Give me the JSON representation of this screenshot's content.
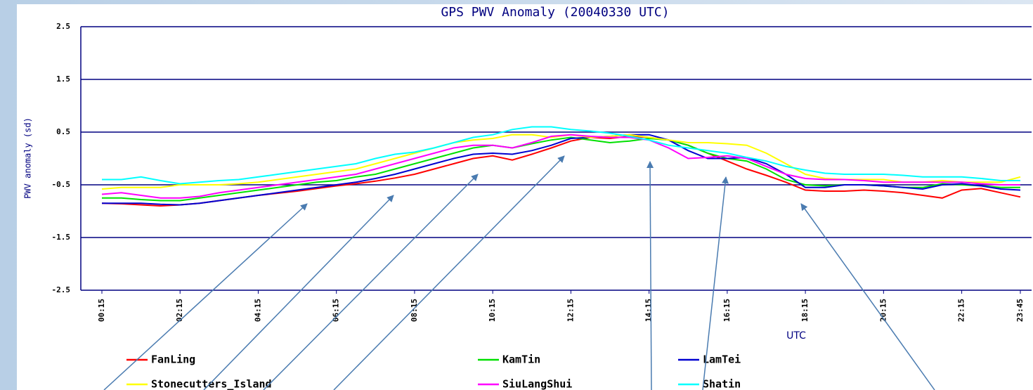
{
  "chart_data": {
    "type": "line",
    "title": "GPS PWV Anomaly (20040330 UTC)",
    "ylabel": "PWV anomaly (sd)",
    "xlabel": "UTC",
    "categories": [
      "00:15",
      null,
      null,
      null,
      "02:15",
      null,
      null,
      null,
      "04:15",
      null,
      null,
      null,
      "06:15",
      null,
      null,
      null,
      "08:15",
      null,
      null,
      null,
      "10:15",
      null,
      null,
      null,
      "12:15",
      null,
      null,
      null,
      "14:15",
      null,
      null,
      null,
      "16:15",
      null,
      null,
      null,
      "18:15",
      null,
      null,
      null,
      "20:15",
      null,
      null,
      null,
      "22:15",
      null,
      null,
      "23:45"
    ],
    "ylim": [
      -2.5,
      2.5
    ],
    "yticks": [
      -2.5,
      -1.5,
      -0.5,
      0.5,
      1.5,
      2.5
    ],
    "grid": true,
    "series": [
      {
        "name": "FanLing",
        "color": "#ff0000",
        "values": [
          -0.85,
          -0.86,
          -0.88,
          -0.9,
          -0.88,
          -0.85,
          -0.8,
          -0.75,
          -0.7,
          -0.66,
          -0.62,
          -0.57,
          -0.52,
          -0.48,
          -0.43,
          -0.37,
          -0.3,
          -0.2,
          -0.1,
          0.0,
          0.05,
          -0.03,
          0.08,
          0.2,
          0.33,
          0.4,
          0.38,
          0.42,
          0.4,
          0.35,
          0.25,
          0.1,
          -0.05,
          -0.2,
          -0.32,
          -0.45,
          -0.6,
          -0.62,
          -0.62,
          -0.6,
          -0.62,
          -0.65,
          -0.7,
          -0.75,
          -0.6,
          -0.57,
          -0.65,
          -0.73
        ]
      },
      {
        "name": "KamTin",
        "color": "#00e000",
        "values": [
          -0.75,
          -0.75,
          -0.78,
          -0.8,
          -0.8,
          -0.75,
          -0.7,
          -0.65,
          -0.6,
          -0.55,
          -0.5,
          -0.45,
          -0.42,
          -0.35,
          -0.3,
          -0.2,
          -0.1,
          0.0,
          0.1,
          0.2,
          0.25,
          0.2,
          0.28,
          0.35,
          0.4,
          0.35,
          0.3,
          0.33,
          0.38,
          0.35,
          0.25,
          0.1,
          0.0,
          -0.05,
          -0.2,
          -0.4,
          -0.5,
          -0.52,
          -0.5,
          -0.5,
          -0.52,
          -0.55,
          -0.55,
          -0.48,
          -0.5,
          -0.52,
          -0.55,
          -0.55
        ]
      },
      {
        "name": "LamTei",
        "color": "#0000d0",
        "values": [
          -0.85,
          -0.85,
          -0.85,
          -0.87,
          -0.88,
          -0.85,
          -0.8,
          -0.75,
          -0.7,
          -0.65,
          -0.6,
          -0.55,
          -0.5,
          -0.45,
          -0.38,
          -0.3,
          -0.2,
          -0.1,
          0.0,
          0.08,
          0.1,
          0.08,
          0.15,
          0.25,
          0.38,
          0.4,
          0.42,
          0.45,
          0.45,
          0.35,
          0.15,
          0.0,
          0.0,
          0.02,
          -0.1,
          -0.3,
          -0.55,
          -0.55,
          -0.5,
          -0.5,
          -0.52,
          -0.55,
          -0.58,
          -0.5,
          -0.48,
          -0.52,
          -0.58,
          -0.6
        ]
      },
      {
        "name": "Stonecutters_Island",
        "color": "#ffff00",
        "values": [
          -0.58,
          -0.55,
          -0.55,
          -0.55,
          -0.5,
          -0.5,
          -0.5,
          -0.48,
          -0.45,
          -0.4,
          -0.35,
          -0.3,
          -0.25,
          -0.2,
          -0.1,
          0.0,
          0.1,
          0.2,
          0.3,
          0.35,
          0.38,
          0.45,
          0.45,
          0.4,
          0.45,
          0.4,
          0.42,
          0.45,
          0.4,
          0.35,
          0.3,
          0.3,
          0.28,
          0.25,
          0.1,
          -0.1,
          -0.3,
          -0.38,
          -0.4,
          -0.4,
          -0.4,
          -0.45,
          -0.45,
          -0.42,
          -0.45,
          -0.45,
          -0.45,
          -0.35
        ]
      },
      {
        "name": "SiuLangShui",
        "color": "#ff00ff",
        "values": [
          -0.68,
          -0.65,
          -0.7,
          -0.75,
          -0.75,
          -0.72,
          -0.65,
          -0.6,
          -0.55,
          -0.5,
          -0.45,
          -0.4,
          -0.35,
          -0.3,
          -0.2,
          -0.1,
          0.0,
          0.1,
          0.2,
          0.25,
          0.25,
          0.2,
          0.3,
          0.42,
          0.45,
          0.42,
          0.4,
          0.4,
          0.35,
          0.2,
          0.0,
          0.02,
          0.05,
          0.0,
          -0.15,
          -0.3,
          -0.38,
          -0.4,
          -0.4,
          -0.42,
          -0.45,
          -0.45,
          -0.45,
          -0.45,
          -0.45,
          -0.48,
          -0.5,
          -0.5
        ]
      },
      {
        "name": "Shatin",
        "color": "#00ffff",
        "values": [
          -0.4,
          -0.4,
          -0.35,
          -0.42,
          -0.48,
          -0.45,
          -0.42,
          -0.4,
          -0.35,
          -0.3,
          -0.25,
          -0.2,
          -0.15,
          -0.1,
          0.0,
          0.08,
          0.12,
          0.2,
          0.3,
          0.4,
          0.45,
          0.55,
          0.6,
          0.6,
          0.55,
          0.52,
          0.48,
          0.42,
          0.35,
          0.25,
          0.2,
          0.15,
          0.1,
          0.02,
          -0.05,
          -0.15,
          -0.22,
          -0.28,
          -0.3,
          -0.3,
          -0.3,
          -0.32,
          -0.35,
          -0.35,
          -0.35,
          -0.38,
          -0.42,
          -0.42
        ]
      }
    ]
  }
}
